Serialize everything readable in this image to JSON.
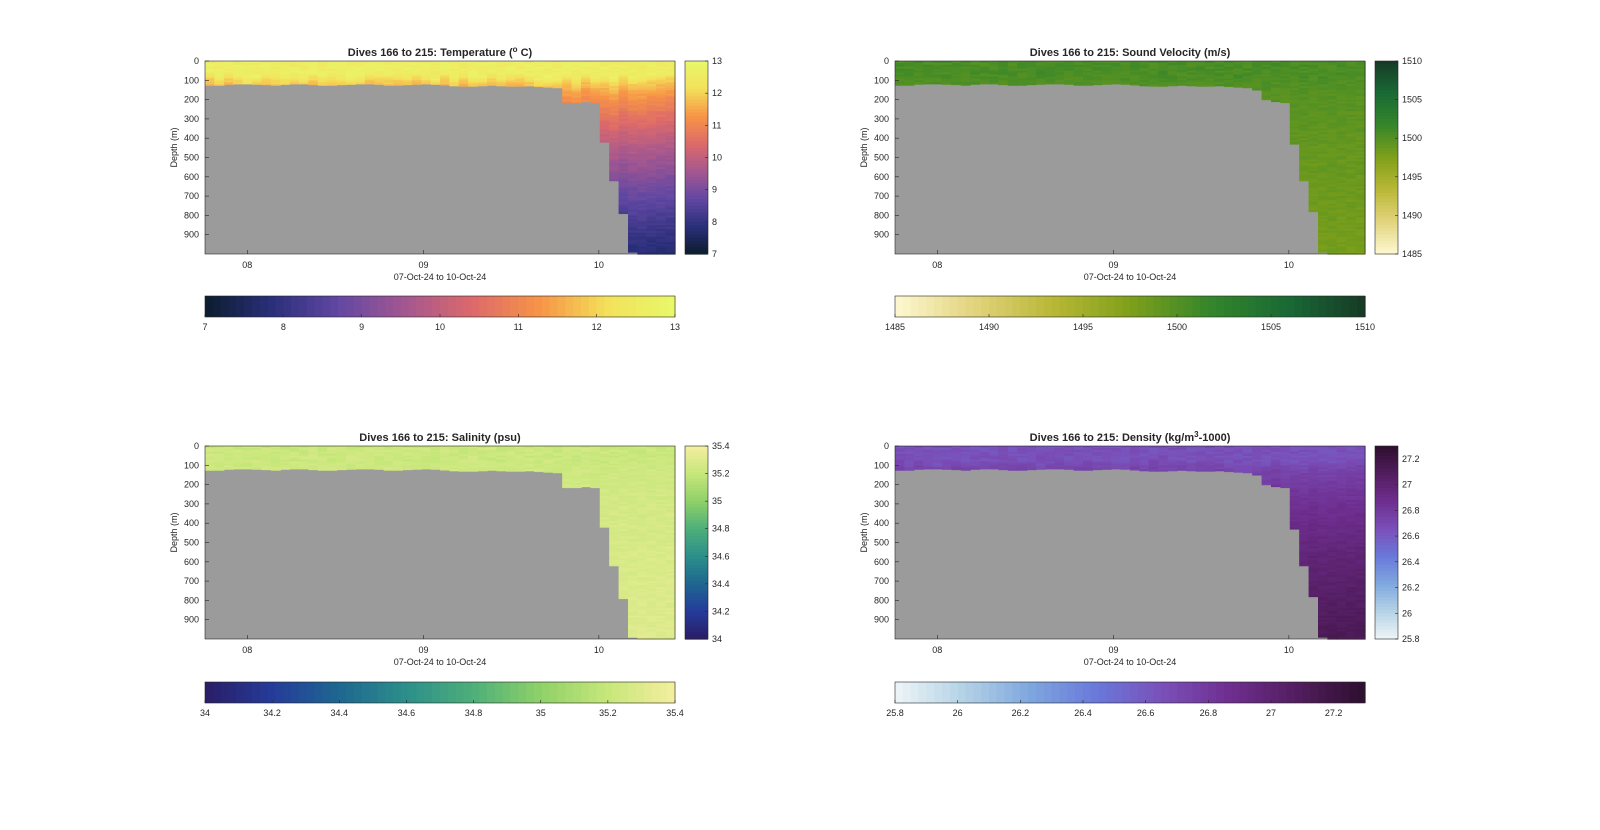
{
  "chart_data": [
    {
      "type": "heatmap",
      "title": "Dives 166 to 215: Temperature (",
      "title_sup": "o",
      "title_end": " C)",
      "xlabel": "07-Oct-24 to 10-Oct-24",
      "ylabel": "Depth (m)",
      "x_ticks": [
        "08",
        "09",
        "10"
      ],
      "y_ticks": [
        "0",
        "100",
        "200",
        "300",
        "400",
        "500",
        "600",
        "700",
        "800",
        "900"
      ],
      "ylim": [
        0,
        1000
      ],
      "x_range": [
        "07-Oct-24",
        "10-Oct-24"
      ],
      "colorbar_ticks": [
        "7",
        "8",
        "9",
        "10",
        "11",
        "12",
        "13"
      ],
      "colorbar_range": [
        7,
        13
      ],
      "colormap": [
        "#0b1d2e",
        "#2a2f7a",
        "#6248a3",
        "#a5578f",
        "#dd6a6a",
        "#f79546",
        "#f3e15a",
        "#e8f86a"
      ],
      "surface_value": 12.6,
      "deep_value": 7.8,
      "seabed_depth": [
        125,
        125,
        120,
        118,
        118,
        120,
        122,
        125,
        120,
        118,
        118,
        122,
        125,
        125,
        122,
        120,
        118,
        118,
        120,
        125,
        125,
        122,
        120,
        118,
        120,
        124,
        128,
        130,
        130,
        128,
        125,
        128,
        130,
        130,
        128,
        132,
        135,
        138,
        215,
        215,
        210,
        215,
        420,
        620,
        790,
        990,
        1000,
        1000,
        1000,
        1000
      ],
      "grid": false
    },
    {
      "type": "heatmap",
      "title": "Dives 166 to 215: Sound Velocity (m/s)",
      "xlabel": "07-Oct-24 to 10-Oct-24",
      "ylabel": "Depth (m)",
      "x_ticks": [
        "08",
        "09",
        "10"
      ],
      "y_ticks": [
        "0",
        "100",
        "200",
        "300",
        "400",
        "500",
        "600",
        "700",
        "800",
        "900"
      ],
      "ylim": [
        0,
        1000
      ],
      "x_range": [
        "07-Oct-24",
        "10-Oct-24"
      ],
      "colorbar_ticks": [
        "1485",
        "1490",
        "1495",
        "1500",
        "1505",
        "1510"
      ],
      "colorbar_range": [
        1485,
        1510
      ],
      "colormap": [
        "#fdf8d2",
        "#e2d47e",
        "#b9b836",
        "#7fa01a",
        "#35862a",
        "#1a6a36",
        "#163a25"
      ],
      "surface_value": 1500.5,
      "deep_value": 1498,
      "seabed_depth": [
        125,
        125,
        120,
        118,
        118,
        120,
        122,
        125,
        120,
        118,
        118,
        122,
        125,
        125,
        122,
        120,
        118,
        118,
        120,
        125,
        125,
        122,
        120,
        118,
        120,
        124,
        128,
        130,
        130,
        128,
        125,
        128,
        130,
        130,
        128,
        132,
        135,
        138,
        150,
        200,
        210,
        215,
        430,
        620,
        780,
        990,
        1000,
        1000,
        1000,
        1000
      ],
      "grid": false
    },
    {
      "type": "heatmap",
      "title": "Dives 166 to 215: Salinity (psu)",
      "xlabel": "07-Oct-24 to 10-Oct-24",
      "ylabel": "Depth (m)",
      "x_ticks": [
        "08",
        "09",
        "10"
      ],
      "y_ticks": [
        "0",
        "100",
        "200",
        "300",
        "400",
        "500",
        "600",
        "700",
        "800",
        "900"
      ],
      "ylim": [
        0,
        1000
      ],
      "x_range": [
        "07-Oct-24",
        "10-Oct-24"
      ],
      "colorbar_ticks": [
        "34",
        "34.2",
        "34.4",
        "34.6",
        "34.8",
        "35",
        "35.2",
        "35.4"
      ],
      "colorbar_range": [
        34,
        35.4
      ],
      "colormap": [
        "#2a1d66",
        "#253b9a",
        "#1e6790",
        "#2c8f8a",
        "#4eaf7a",
        "#8fd168",
        "#c7e77a",
        "#f4eea0"
      ],
      "surface_value": 35.22,
      "deep_value": 35.3,
      "seabed_depth": [
        125,
        125,
        120,
        118,
        118,
        120,
        122,
        125,
        120,
        118,
        118,
        122,
        125,
        125,
        122,
        120,
        118,
        118,
        120,
        125,
        125,
        122,
        120,
        118,
        120,
        124,
        128,
        130,
        130,
        128,
        125,
        128,
        130,
        130,
        128,
        132,
        135,
        138,
        215,
        215,
        210,
        215,
        420,
        620,
        790,
        990,
        1000,
        1000,
        1000,
        1000
      ],
      "grid": false
    },
    {
      "type": "heatmap",
      "title": "Dives 166 to 215: Density (kg/m",
      "title_sup": "3",
      "title_end": "-1000)",
      "xlabel": "07-Oct-24 to 10-Oct-24",
      "ylabel": "Depth (m)",
      "x_ticks": [
        "08",
        "09",
        "10"
      ],
      "y_ticks": [
        "0",
        "100",
        "200",
        "300",
        "400",
        "500",
        "600",
        "700",
        "800",
        "900"
      ],
      "ylim": [
        0,
        1000
      ],
      "x_range": [
        "07-Oct-24",
        "10-Oct-24"
      ],
      "colorbar_ticks": [
        "25.8",
        "26",
        "26.2",
        "26.4",
        "26.6",
        "26.8",
        "27",
        "27.2"
      ],
      "colorbar_range": [
        25.8,
        27.3
      ],
      "colormap": [
        "#eef5f7",
        "#b5d3e6",
        "#7fa8de",
        "#6a78da",
        "#7a4fb8",
        "#6e2e8f",
        "#521d5e",
        "#2d0f2e"
      ],
      "surface_value": 26.65,
      "deep_value": 27.12,
      "seabed_depth": [
        125,
        125,
        120,
        118,
        118,
        120,
        122,
        125,
        120,
        118,
        118,
        122,
        125,
        125,
        122,
        120,
        118,
        118,
        120,
        125,
        125,
        122,
        120,
        118,
        120,
        124,
        128,
        130,
        130,
        128,
        125,
        128,
        130,
        130,
        128,
        132,
        135,
        138,
        150,
        200,
        210,
        215,
        430,
        620,
        780,
        990,
        1000,
        1000,
        1000,
        1000
      ],
      "grid": false
    }
  ]
}
